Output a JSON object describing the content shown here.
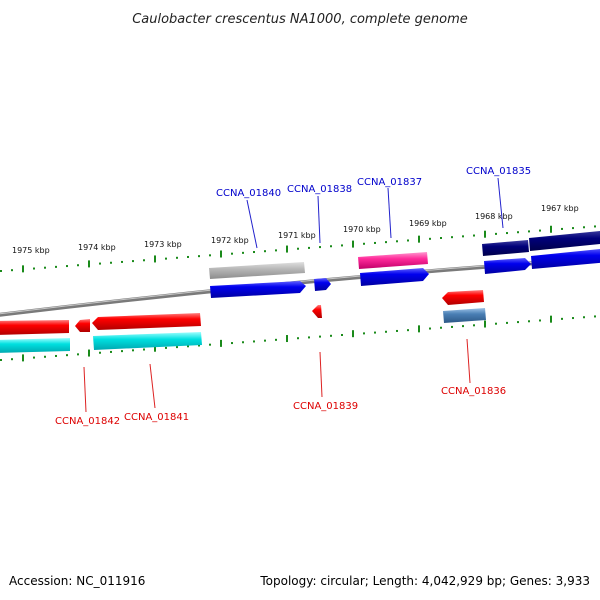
{
  "title": "Caulobacter crescentus NA1000, complete genome",
  "footer": {
    "accession": "Accession: NC_011916",
    "summary": "Topology: circular; Length: 4,042,929 bp; Genes: 3,933"
  },
  "ticks_top": [
    "1975 kbp",
    "1974 kbp",
    "1973 kbp",
    "1972 kbp",
    "1971 kbp",
    "1970 kbp",
    "1969 kbp",
    "1968 kbp",
    "1967 kbp"
  ],
  "labels_blue": [
    "CCNA_01840",
    "CCNA_01838",
    "CCNA_01837",
    "CCNA_01835"
  ],
  "labels_red": [
    "CCNA_01842",
    "CCNA_01841",
    "CCNA_01839",
    "CCNA_01836"
  ],
  "colors": {
    "backbone": "#8a8a8a",
    "tick": "#1a8a1a",
    "gene_red": "#ff0000",
    "gene_blue": "#0000ee",
    "cds_cyan": "#00e0e0",
    "cds_grey": "#b8b8b8",
    "cds_pink": "#ff2a9a",
    "cds_navy": "#00007a",
    "cds_steel": "#4a7fb5",
    "label_blue": "#0000cc",
    "label_red": "#dd0000"
  }
}
